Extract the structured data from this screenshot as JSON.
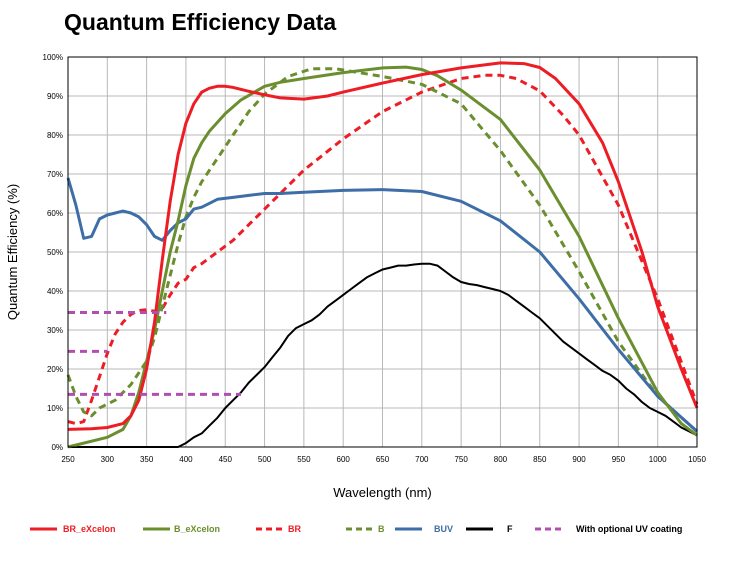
{
  "page": {
    "title": "Quantum Efficiency Data"
  },
  "colors": {
    "red": "#ee1c24",
    "green": "#6b8e2f",
    "blue": "#3e6ea7",
    "black": "#000000",
    "purple": "#b04fb0",
    "grid": "#b8b8b8"
  },
  "chart_data": {
    "type": "line",
    "title": "Quantum Efficiency Data",
    "xlabel": "Wavelength (nm)",
    "ylabel": "Quantum Efficiency (%)",
    "xlim": [
      250,
      1050
    ],
    "ylim": [
      0,
      100
    ],
    "grid": true,
    "legend_position": "bottom",
    "x_ticks": [
      "250",
      "300",
      "350",
      "400",
      "450",
      "500",
      "550",
      "600",
      "650",
      "700",
      "750",
      "800",
      "850",
      "900",
      "950",
      "1000",
      "1050"
    ],
    "y_ticks": [
      "0%",
      "10%",
      "20%",
      "30%",
      "40%",
      "50%",
      "60%",
      "70%",
      "80%",
      "90%",
      "100%"
    ],
    "series": [
      {
        "name": "BR_eXcelon",
        "color": "#ee1c24",
        "dash": false,
        "x": [
          250,
          280,
          300,
          320,
          330,
          340,
          350,
          360,
          370,
          380,
          390,
          400,
          410,
          420,
          430,
          440,
          450,
          460,
          480,
          500,
          520,
          550,
          580,
          600,
          650,
          700,
          750,
          800,
          830,
          850,
          870,
          900,
          930,
          950,
          980,
          1000,
          1030,
          1050
        ],
        "y": [
          4.5,
          4.7,
          5,
          6,
          8,
          12,
          20,
          32,
          48,
          63,
          75,
          83,
          88,
          91,
          92,
          92.5,
          92.5,
          92.2,
          91.2,
          90.3,
          89.5,
          89.2,
          90,
          91,
          93.3,
          95.5,
          97.2,
          98.5,
          98.3,
          97.3,
          94.5,
          88,
          78,
          68,
          50,
          36,
          20,
          10
        ]
      },
      {
        "name": "B_eXcelon",
        "color": "#6b8e2f",
        "dash": false,
        "x": [
          250,
          300,
          320,
          330,
          340,
          350,
          360,
          370,
          380,
          390,
          400,
          410,
          420,
          430,
          450,
          470,
          500,
          520,
          550,
          600,
          650,
          680,
          700,
          720,
          750,
          800,
          850,
          900,
          950,
          1000,
          1030,
          1050
        ],
        "y": [
          0,
          2.5,
          4.5,
          8,
          14,
          22,
          30,
          40,
          50,
          58,
          67,
          74,
          78,
          81,
          85.5,
          89,
          92.5,
          93.5,
          94.5,
          96,
          97.2,
          97.4,
          96.8,
          95.2,
          91.5,
          84,
          71,
          54,
          33,
          14,
          6,
          3
        ]
      },
      {
        "name": "BR",
        "color": "#ee1c24",
        "dash": true,
        "x": [
          250,
          260,
          270,
          280,
          290,
          300,
          310,
          320,
          330,
          340,
          350,
          360,
          370,
          380,
          390,
          400,
          410,
          420,
          440,
          460,
          480,
          500,
          550,
          600,
          650,
          700,
          750,
          780,
          800,
          820,
          850,
          880,
          900,
          950,
          1000,
          1050
        ],
        "y": [
          6.5,
          6,
          6.5,
          12,
          18,
          24,
          29,
          32,
          34,
          35,
          35.2,
          34.8,
          35.5,
          39,
          42,
          43,
          46,
          47,
          50,
          53,
          57,
          61,
          71,
          79,
          86,
          91,
          94.5,
          95.3,
          95.3,
          94.5,
          91.3,
          85,
          80,
          62,
          38,
          11
        ]
      },
      {
        "name": "B",
        "color": "#6b8e2f",
        "dash": true,
        "x": [
          250,
          260,
          270,
          280,
          290,
          300,
          310,
          320,
          330,
          340,
          350,
          360,
          370,
          380,
          390,
          400,
          410,
          420,
          440,
          460,
          480,
          500,
          530,
          560,
          590,
          620,
          650,
          700,
          750,
          800,
          850,
          900,
          950,
          1000,
          1050
        ],
        "y": [
          18.5,
          13,
          9,
          8,
          10,
          11,
          12,
          14,
          16,
          19,
          22,
          28,
          36,
          44,
          52,
          59,
          64,
          68,
          74,
          80,
          86,
          90.5,
          95,
          97,
          97,
          96,
          95,
          93,
          88,
          76,
          62,
          45,
          27,
          13,
          4
        ]
      },
      {
        "name": "BUV",
        "color": "#3e6ea7",
        "dash": false,
        "x": [
          250,
          260,
          270,
          280,
          290,
          300,
          310,
          320,
          330,
          340,
          350,
          360,
          370,
          380,
          390,
          400,
          410,
          420,
          430,
          440,
          460,
          480,
          500,
          520,
          550,
          600,
          650,
          700,
          750,
          800,
          850,
          900,
          950,
          1000,
          1050
        ],
        "y": [
          69,
          62,
          53.5,
          54,
          58.5,
          59.5,
          60,
          60.5,
          60,
          59,
          57,
          54,
          53,
          55.5,
          57.5,
          58.5,
          61,
          61.5,
          62.5,
          63.5,
          64,
          64.5,
          65,
          65,
          65.3,
          65.8,
          66,
          65.5,
          63,
          58,
          50,
          38,
          25,
          13,
          4
        ]
      },
      {
        "name": "F",
        "color": "#000000",
        "dash": false,
        "x": [
          250,
          300,
          350,
          390,
          400,
          410,
          420,
          430,
          440,
          450,
          460,
          470,
          480,
          490,
          500,
          510,
          520,
          530,
          540,
          550,
          560,
          570,
          580,
          590,
          600,
          610,
          620,
          630,
          640,
          650,
          660,
          670,
          680,
          690,
          700,
          710,
          720,
          730,
          740,
          750,
          760,
          770,
          780,
          790,
          800,
          810,
          820,
          830,
          840,
          850,
          860,
          870,
          880,
          890,
          900,
          910,
          920,
          930,
          940,
          950,
          960,
          970,
          980,
          990,
          1000,
          1010,
          1020,
          1030,
          1040,
          1050
        ],
        "y": [
          0,
          0,
          0,
          0,
          1,
          2.5,
          3.5,
          5.5,
          7.5,
          10,
          12,
          14,
          16.5,
          18.5,
          20.5,
          23,
          25.5,
          28.5,
          30.5,
          31.5,
          32.5,
          34,
          36,
          37.5,
          39,
          40.5,
          42,
          43.5,
          44.5,
          45.5,
          46,
          46.5,
          46.5,
          46.8,
          47,
          47,
          46.5,
          45,
          43.5,
          42.3,
          41.8,
          41.5,
          41,
          40.5,
          40,
          39,
          37.5,
          36,
          34.5,
          33,
          31,
          29,
          27,
          25.5,
          24,
          22.5,
          21,
          19.5,
          18.5,
          17,
          15,
          13.5,
          11.5,
          10,
          9,
          8,
          6.5,
          5,
          4,
          3
        ]
      },
      {
        "name": "With optional UV coating",
        "color": "#b04fb0",
        "dash": true,
        "segments": [
          {
            "x": [
              250,
              375
            ],
            "y": [
              34.5,
              34.5
            ]
          },
          {
            "x": [
              250,
              300
            ],
            "y": [
              24.5,
              24.5
            ]
          },
          {
            "x": [
              250,
              470
            ],
            "y": [
              13.5,
              13.5
            ]
          }
        ]
      }
    ]
  }
}
